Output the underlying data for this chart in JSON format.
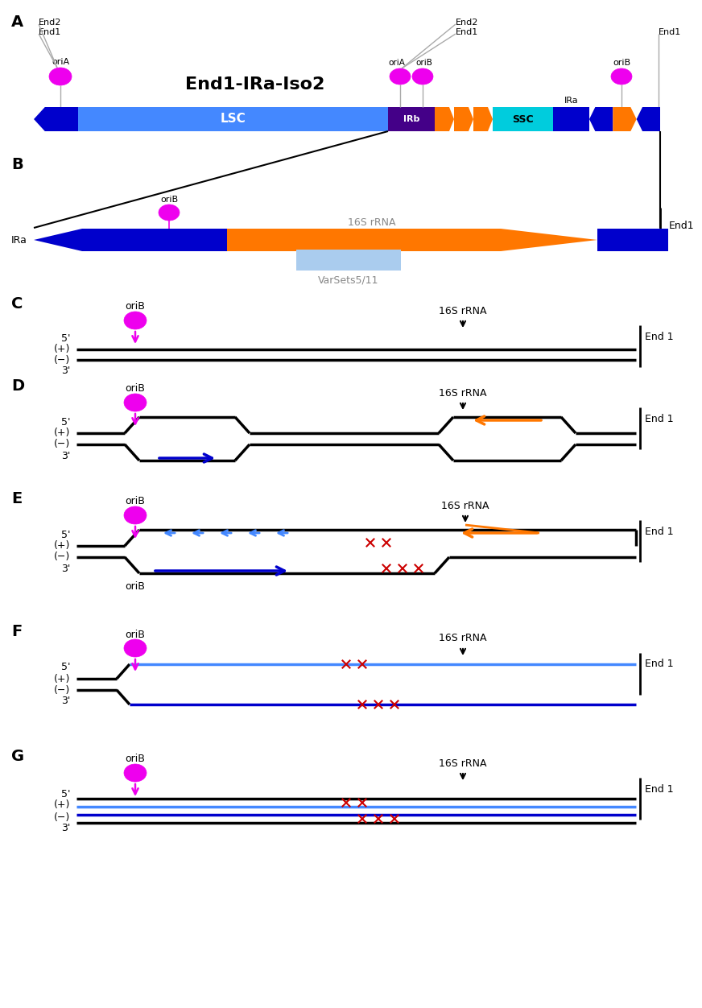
{
  "bg_color": "#ffffff",
  "magenta": "#EE00EE",
  "orange": "#FF7700",
  "blue_dark": "#0000CC",
  "blue_light": "#4488FF",
  "blue_med": "#2266DD",
  "cyan": "#00CCDD",
  "purple": "#440088",
  "light_blue_box": "#AACCEE",
  "red": "#CC0000",
  "black": "#000000",
  "gray": "#888888",
  "lgray": "#aaaaaa"
}
